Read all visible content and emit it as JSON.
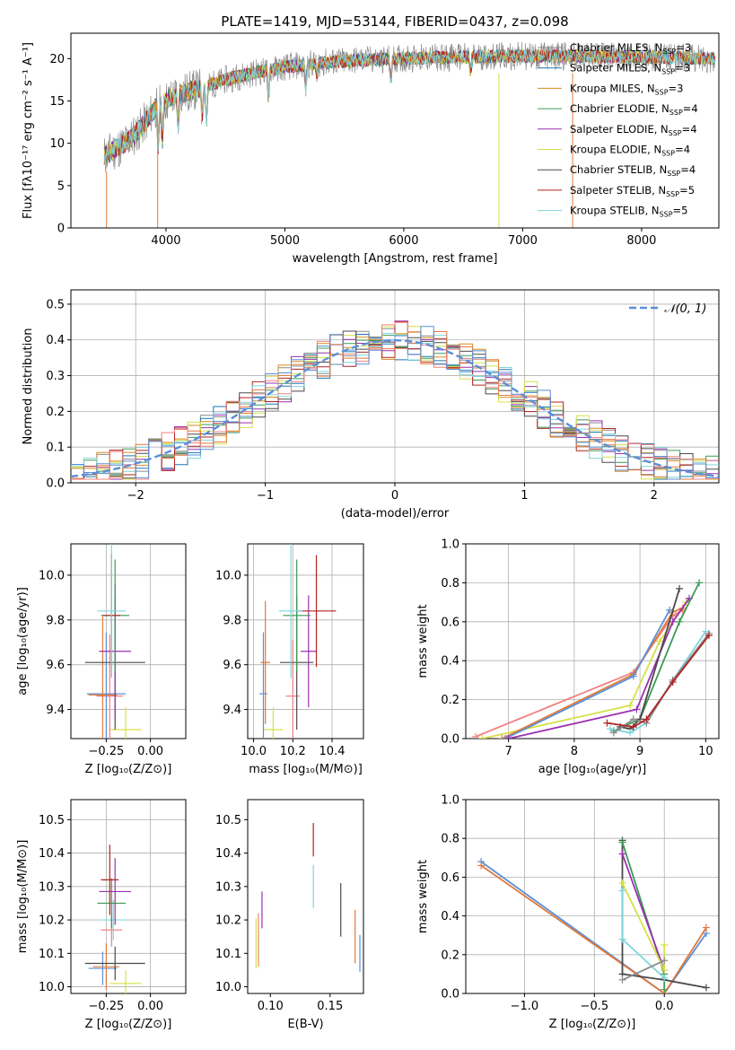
{
  "figure": {
    "title": "PLATE=1419, MJD=53144, FIBERID=0437, z=0.098"
  },
  "legend": {
    "entries": [
      {
        "label": "Chabrier MILES, N",
        "sub": "SSP",
        "tail": "=3",
        "color": "#8c8c8c"
      },
      {
        "label": "Salpeter MILES, N",
        "sub": "SSP",
        "tail": "=3",
        "color": "#1f77b4"
      },
      {
        "label": "Kroupa MILES, N",
        "sub": "SSP",
        "tail": "=3",
        "color": "#d68a1e"
      },
      {
        "label": "Chabrier ELODIE, N",
        "sub": "SSP",
        "tail": "=4",
        "color": "#3c9a53"
      },
      {
        "label": "Salpeter ELODIE, N",
        "sub": "SSP",
        "tail": "=4",
        "color": "#9b30b0"
      },
      {
        "label": "Kroupa ELODIE, N",
        "sub": "SSP",
        "tail": "=4",
        "color": "#d6e04a"
      },
      {
        "label": "Chabrier STELIB, N",
        "sub": "SSP",
        "tail": "=4",
        "color": "#4a4a4a"
      },
      {
        "label": "Salpeter STELIB, N",
        "sub": "SSP",
        "tail": "=5",
        "color": "#b22222"
      },
      {
        "label": "Kroupa STELIB, N",
        "sub": "SSP",
        "tail": "=5",
        "color": "#7fd6dc"
      }
    ]
  },
  "chart_data": [
    {
      "type": "line",
      "id": "spectrum",
      "xlabel": "wavelength [Angstrom, rest frame]",
      "ylabel": "Flux [fλ10⁻¹⁷ erg cm⁻² s⁻¹ A⁻¹]",
      "xlim": [
        3200,
        8650
      ],
      "ylim": [
        0,
        23
      ],
      "xticks": [
        4000,
        5000,
        6000,
        7000,
        8000
      ],
      "yticks": [
        0,
        5,
        10,
        15,
        20
      ],
      "grid": false,
      "legend_position": "upper-right",
      "continuum": {
        "x": [
          3480,
          3600,
          3700,
          3800,
          3900,
          4000,
          4100,
          4300,
          4500,
          4700,
          5000,
          5300,
          5600,
          6000,
          6500,
          7000,
          7500,
          8000,
          8600
        ],
        "y": [
          8.5,
          9.5,
          10.5,
          12,
          14,
          15,
          15.8,
          16.5,
          17.5,
          18.2,
          19,
          19.5,
          19.8,
          20,
          20.2,
          20.3,
          20.3,
          20.2,
          20
        ]
      }
    },
    {
      "type": "bar",
      "id": "residual-histogram",
      "xlabel": "(data-model)/error",
      "ylabel": "Normed distribution",
      "xlim": [
        -2.5,
        2.5
      ],
      "ylim": [
        0,
        0.54
      ],
      "xticks": [
        -2,
        -1,
        0,
        1,
        2
      ],
      "yticks": [
        0.0,
        0.1,
        0.2,
        0.3,
        0.4,
        0.5
      ],
      "grid": true,
      "reference_curve": {
        "name": "𝒩(0, 1)",
        "mean": 0,
        "sigma": 1,
        "color": "#5b8fd6"
      },
      "bin_width": 0.1
    },
    {
      "type": "scatter",
      "id": "age-vs-Z",
      "xlabel": "Z [log₁₀(Z/Z⊙)]",
      "ylabel": "age  [log₁₀(age/yr)]",
      "xlim": [
        -0.45,
        0.2
      ],
      "ylim": [
        9.27,
        10.14
      ],
      "xticks": [
        -0.25,
        0.0
      ],
      "yticks": [
        9.4,
        9.6,
        9.8,
        10.0
      ],
      "grid": true,
      "points": [
        {
          "x": -0.14,
          "y": 9.31,
          "xerr": 0.18,
          "yerr": 0.2,
          "color": "#d6e04a"
        },
        {
          "x": -0.23,
          "y": 9.46,
          "xerr": 0.15,
          "yerr": 0.55,
          "color": "#f08080"
        },
        {
          "x": -0.25,
          "y": 9.47,
          "xerr": 0.22,
          "yerr": 0.55,
          "color": "#5b8fd6"
        },
        {
          "x": -0.27,
          "y": 9.465,
          "xerr": 0.16,
          "yerr": 0.7,
          "color": "#e07a3a"
        },
        {
          "x": -0.2,
          "y": 9.61,
          "xerr": 0.34,
          "yerr": 0.6,
          "color": "#4a4a4a"
        },
        {
          "x": -0.2,
          "y": 9.66,
          "xerr": 0.18,
          "yerr": 0.6,
          "color": "#9b30b0"
        },
        {
          "x": -0.2,
          "y": 9.82,
          "xerr": 0.16,
          "yerr": 0.5,
          "color": "#3c9a53"
        },
        {
          "x": -0.22,
          "y": 9.82,
          "xerr": 0.1,
          "yerr": 0.55,
          "color": "#b22222"
        },
        {
          "x": -0.22,
          "y": 9.84,
          "xerr": 0.16,
          "yerr": 0.6,
          "color": "#7fd6dc"
        }
      ]
    },
    {
      "type": "scatter",
      "id": "age-vs-mass",
      "xlabel": "mass [log₁₀(M/M⊙)]",
      "ylabel": "",
      "xlim": [
        9.97,
        10.56
      ],
      "ylim": [
        9.27,
        10.14
      ],
      "xticks": [
        10.0,
        10.2,
        10.4
      ],
      "yticks": [
        9.4,
        9.6,
        9.8,
        10.0
      ],
      "grid": true,
      "points": [
        {
          "x": 10.1,
          "y": 9.31,
          "xerr": 0.1,
          "yerr": 0.2,
          "color": "#d6e04a"
        },
        {
          "x": 10.05,
          "y": 9.47,
          "xerr": 0.04,
          "yerr": 0.55,
          "color": "#5b8fd6"
        },
        {
          "x": 10.2,
          "y": 9.46,
          "xerr": 0.07,
          "yerr": 0.5,
          "color": "#f08080"
        },
        {
          "x": 10.06,
          "y": 9.61,
          "xerr": 0.05,
          "yerr": 0.55,
          "color": "#e07a3a"
        },
        {
          "x": 10.22,
          "y": 9.61,
          "xerr": 0.17,
          "yerr": 0.6,
          "color": "#4a4a4a"
        },
        {
          "x": 10.28,
          "y": 9.66,
          "xerr": 0.08,
          "yerr": 0.5,
          "color": "#9b30b0"
        },
        {
          "x": 10.22,
          "y": 9.82,
          "xerr": 0.14,
          "yerr": 0.5,
          "color": "#3c9a53"
        },
        {
          "x": 10.32,
          "y": 9.84,
          "xerr": 0.2,
          "yerr": 0.5,
          "color": "#b22222"
        },
        {
          "x": 10.19,
          "y": 9.84,
          "xerr": 0.12,
          "yerr": 0.6,
          "color": "#7fd6dc"
        }
      ]
    },
    {
      "type": "line",
      "id": "mass-weight-vs-age",
      "xlabel": "age  [log₁₀(age/yr)]",
      "ylabel": "mass weight",
      "xlim": [
        6.35,
        10.2
      ],
      "ylim": [
        0,
        1.0
      ],
      "xticks": [
        7,
        8,
        9,
        10
      ],
      "yticks": [
        0.0,
        0.2,
        0.4,
        0.6,
        0.8,
        1.0
      ],
      "grid": true,
      "series": [
        {
          "color": "#d6e04a",
          "x": [
            6.6,
            8.85,
            9.3,
            9.7
          ],
          "y": [
            0.0,
            0.17,
            0.5,
            0.7
          ]
        },
        {
          "color": "#f08080",
          "x": [
            6.5,
            8.9,
            9.5,
            9.65
          ],
          "y": [
            0.01,
            0.34,
            0.63,
            0.66
          ]
        },
        {
          "color": "#e07a3a",
          "x": [
            6.9,
            8.9,
            9.5,
            9.65
          ],
          "y": [
            0.0,
            0.33,
            0.65,
            0.67
          ]
        },
        {
          "color": "#5b8fd6",
          "x": [
            6.95,
            8.9,
            9.45
          ],
          "y": [
            0.0,
            0.32,
            0.66
          ]
        },
        {
          "color": "#9b30b0",
          "x": [
            7.0,
            8.95,
            9.5,
            9.75
          ],
          "y": [
            0.0,
            0.15,
            0.6,
            0.72
          ]
        },
        {
          "color": "#3c9a53",
          "x": [
            8.6,
            9.0,
            9.6,
            9.9
          ],
          "y": [
            0.04,
            0.1,
            0.6,
            0.8
          ]
        },
        {
          "color": "#4a4a4a",
          "x": [
            8.7,
            8.85,
            9.0,
            9.6
          ],
          "y": [
            0.06,
            0.05,
            0.1,
            0.77
          ]
        },
        {
          "color": "#7fd6dc",
          "x": [
            8.55,
            8.85,
            9.1,
            9.5,
            10.0
          ],
          "y": [
            0.05,
            0.03,
            0.08,
            0.3,
            0.55
          ]
        },
        {
          "color": "#8c8c8c",
          "x": [
            8.6,
            8.9,
            9.1,
            9.5,
            10.05
          ],
          "y": [
            0.03,
            0.1,
            0.08,
            0.3,
            0.54
          ]
        },
        {
          "color": "#b22222",
          "x": [
            8.5,
            8.9,
            9.1,
            9.5,
            10.05
          ],
          "y": [
            0.08,
            0.06,
            0.1,
            0.29,
            0.53
          ]
        }
      ]
    },
    {
      "type": "scatter",
      "id": "mass-vs-Z",
      "xlabel": "Z [log₁₀(Z/Z⊙)]",
      "ylabel": "mass [log₁₀(M/M⊙)]",
      "xlim": [
        -0.45,
        0.2
      ],
      "ylim": [
        9.98,
        10.56
      ],
      "xticks": [
        -0.25,
        0.0
      ],
      "yticks": [
        10.0,
        10.1,
        10.2,
        10.3,
        10.4,
        10.5
      ],
      "grid": true,
      "points": [
        {
          "x": -0.14,
          "y": 10.01,
          "xerr": 0.18,
          "yerr": 0.08,
          "color": "#d6e04a"
        },
        {
          "x": -0.27,
          "y": 10.055,
          "xerr": 0.16,
          "yerr": 0.1,
          "color": "#5b8fd6"
        },
        {
          "x": -0.25,
          "y": 10.06,
          "xerr": 0.15,
          "yerr": 0.14,
          "color": "#e07a3a"
        },
        {
          "x": -0.2,
          "y": 10.07,
          "xerr": 0.34,
          "yerr": 0.1,
          "color": "#4a4a4a"
        },
        {
          "x": -0.22,
          "y": 10.17,
          "xerr": 0.12,
          "yerr": 0.1,
          "color": "#f08080"
        },
        {
          "x": -0.21,
          "y": 10.2,
          "xerr": 0.15,
          "yerr": 0.12,
          "color": "#7fd6dc"
        },
        {
          "x": -0.22,
          "y": 10.25,
          "xerr": 0.16,
          "yerr": 0.15,
          "color": "#3c9a53"
        },
        {
          "x": -0.2,
          "y": 10.285,
          "xerr": 0.18,
          "yerr": 0.2,
          "color": "#9b30b0"
        },
        {
          "x": -0.23,
          "y": 10.32,
          "xerr": 0.1,
          "yerr": 0.21,
          "color": "#b22222"
        }
      ]
    },
    {
      "type": "scatter",
      "id": "mass-vs-ebv",
      "xlabel": "E(B-V)",
      "ylabel": "",
      "xlim": [
        0.081,
        0.178
      ],
      "ylim": [
        9.98,
        10.56
      ],
      "xticks": [
        0.1,
        0.15
      ],
      "yticks": [
        10.0,
        10.1,
        10.2,
        10.3,
        10.4,
        10.5
      ],
      "grid": false,
      "points": [
        {
          "x": 0.088,
          "y": 10.13,
          "yerr": 0.15,
          "color": "#d6e04a"
        },
        {
          "x": 0.09,
          "y": 10.14,
          "yerr": 0.16,
          "color": "#f08080"
        },
        {
          "x": 0.093,
          "y": 10.23,
          "yerr": 0.11,
          "color": "#9b30b0"
        },
        {
          "x": 0.136,
          "y": 10.3,
          "yerr": 0.13,
          "color": "#7fd6dc"
        },
        {
          "x": 0.136,
          "y": 10.44,
          "yerr": 0.1,
          "color": "#b22222"
        },
        {
          "x": 0.159,
          "y": 10.23,
          "yerr": 0.16,
          "color": "#4a4a4a"
        },
        {
          "x": 0.171,
          "y": 10.15,
          "yerr": 0.16,
          "color": "#e07a3a"
        },
        {
          "x": 0.175,
          "y": 10.1,
          "yerr": 0.11,
          "color": "#5b8fd6"
        }
      ]
    },
    {
      "type": "line",
      "id": "mass-weight-vs-Z",
      "xlabel": "Z [log₁₀(Z/Z⊙)]",
      "ylabel": "mass weight",
      "xlim": [
        -1.42,
        0.39
      ],
      "ylim": [
        0,
        1.0
      ],
      "xticks": [
        -1.0,
        -0.5,
        0.0
      ],
      "yticks": [
        0.0,
        0.2,
        0.4,
        0.6,
        0.8,
        1.0
      ],
      "grid": true,
      "series": [
        {
          "color": "#5b8fd6",
          "x": [
            -1.31,
            0.0,
            0.3
          ],
          "y": [
            0.68,
            0.0,
            0.31
          ]
        },
        {
          "color": "#e07a3a",
          "x": [
            -1.31,
            0.0,
            0.3
          ],
          "y": [
            0.66,
            0.0,
            0.34
          ]
        },
        {
          "color": "#4a4a4a",
          "x": [
            -0.3,
            -0.3,
            0.0,
            0.3
          ],
          "y": [
            0.79,
            0.1,
            0.07,
            0.03
          ]
        },
        {
          "color": "#3c9a53",
          "x": [
            -0.3,
            0.0,
            0.0
          ],
          "y": [
            0.78,
            0.1,
            0.02
          ]
        },
        {
          "color": "#9b30b0",
          "x": [
            -0.3,
            0.0
          ],
          "y": [
            0.72,
            0.12
          ]
        },
        {
          "color": "#d6e04a",
          "x": [
            -0.3,
            0.0,
            0.0
          ],
          "y": [
            0.57,
            0.12,
            0.25
          ]
        },
        {
          "color": "#7fd6dc",
          "x": [
            -0.3,
            -0.3,
            0.0
          ],
          "y": [
            0.53,
            0.28,
            0.08
          ]
        },
        {
          "color": "#8c8c8c",
          "x": [
            -0.3,
            0.0
          ],
          "y": [
            0.07,
            0.17
          ]
        }
      ]
    }
  ]
}
